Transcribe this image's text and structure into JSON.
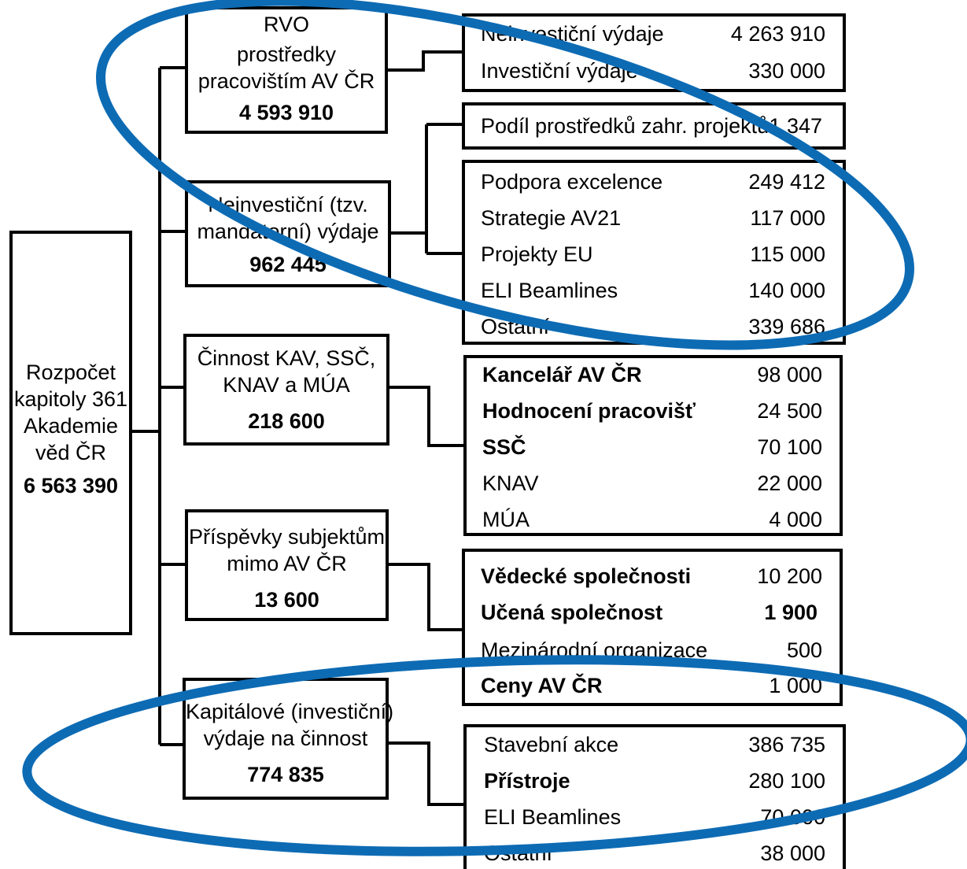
{
  "colors": {
    "stroke": "#000000",
    "highlight": "#0d6bb4"
  },
  "root": {
    "lines": [
      "Rozpočet",
      "kapitoly 361",
      "Akademie",
      "věd ČR"
    ],
    "amount": "6 563 390"
  },
  "categories": [
    {
      "lines": [
        "RVO",
        "prostředky",
        "pracovištím AV ČR"
      ],
      "amount": "4 593 910",
      "items": [
        {
          "label": "Neinvestiční výdaje",
          "value": "4 263 910"
        },
        {
          "label": "Investiční výdaje",
          "value": "330 000"
        }
      ]
    },
    {
      "lines": [
        "Neinvestiční (tzv.",
        "mandatorní) výdaje"
      ],
      "amount": "962 445",
      "items_top": [
        {
          "label": "Podíl prostředků zahr. projektů",
          "value": "1 347"
        }
      ],
      "items": [
        {
          "label": "Podpora excelence",
          "value": "249 412"
        },
        {
          "label": "Strategie AV21",
          "value": "117 000"
        },
        {
          "label": "Projekty EU",
          "value": "115 000"
        },
        {
          "label": "ELI Beamlines",
          "value": "140 000"
        },
        {
          "label": "Ostatní",
          "value": "339 686"
        }
      ]
    },
    {
      "lines": [
        "Činnost KAV, SSČ,",
        "KNAV a MÚA"
      ],
      "amount": "218 600",
      "items": [
        {
          "label": "Kancelář AV ČR",
          "value": "98 000"
        },
        {
          "label": "Hodnocení pracovišť",
          "value": "24 500"
        },
        {
          "label": "SSČ",
          "value": "70 100"
        },
        {
          "label": "KNAV",
          "value": "22 000"
        },
        {
          "label": "MÚA",
          "value": "4 000"
        }
      ]
    },
    {
      "lines": [
        "Příspěvky subjektům",
        "mimo AV ČR"
      ],
      "amount": "13 600",
      "items": [
        {
          "label": "Vědecké společnosti",
          "value": "10 200"
        },
        {
          "label": "Učená společnost",
          "value": "1 900"
        },
        {
          "label": "Mezinárodní organizace",
          "value": "500"
        },
        {
          "label": "Ceny AV ČR",
          "value": "1 000"
        }
      ]
    },
    {
      "lines": [
        "Kapitálové (investiční)",
        "výdaje na činnost"
      ],
      "amount": "774 835",
      "items": [
        {
          "label": "Stavební akce",
          "value": "386 735"
        },
        {
          "label": "Přístroje",
          "value": "280 100"
        },
        {
          "label": "ELI Beamlines",
          "value": "70 000"
        },
        {
          "label": "Ostatní",
          "value": "38 000"
        }
      ]
    }
  ]
}
